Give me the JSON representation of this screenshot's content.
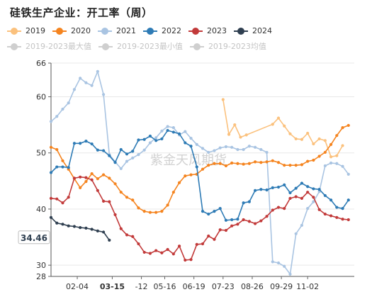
{
  "title": "硅铁生产企业：开工率（周）",
  "colors": {
    "y2019": "#fbc17d",
    "y2020": "#f5841f",
    "y2021": "#a9c4e2",
    "y2022": "#2e7bb5",
    "y2023": "#c23a3a",
    "y2024": "#2f3f50",
    "max": "#cfcfcf",
    "min": "#cfcfcf",
    "avg": "#cfcfcf"
  },
  "legend": [
    {
      "key": "y2019",
      "label": "2019"
    },
    {
      "key": "y2020",
      "label": "2020"
    },
    {
      "key": "y2021",
      "label": "2021"
    },
    {
      "key": "y2022",
      "label": "2022"
    },
    {
      "key": "y2023",
      "label": "2023"
    },
    {
      "key": "y2024",
      "label": "2024"
    },
    {
      "key": "max",
      "label": "2019-2023最大值"
    },
    {
      "key": "min",
      "label": "2019-2023最小值"
    },
    {
      "key": "avg",
      "label": "2019-2023均值"
    }
  ],
  "watermark": "紫金天风期货",
  "current_value_label": "34.46",
  "current_date_label": "03-15",
  "chart_data": {
    "type": "line",
    "title": "硅铁生产企业：开工率（周）",
    "x_range_weeks": [
      0,
      52
    ],
    "x_ticks": [
      {
        "week": 4.5,
        "label": "02-04"
      },
      {
        "week": 10.5,
        "label": "03-15",
        "highlight": true
      },
      {
        "week": 15.5,
        "label": "-12"
      },
      {
        "week": 19.5,
        "label": "05-16"
      },
      {
        "week": 24.5,
        "label": "06-19"
      },
      {
        "week": 29.5,
        "label": "07-23"
      },
      {
        "week": 34.5,
        "label": "08-26"
      },
      {
        "week": 39.5,
        "label": "09-29"
      },
      {
        "week": 44,
        "label": "11-02"
      }
    ],
    "ylim": [
      28,
      66
    ],
    "y_ticks": [
      28,
      30,
      40,
      50,
      60,
      66
    ],
    "series": [
      {
        "key": "y2019",
        "name": "2019",
        "x": [
          29.5,
          30.5,
          31.5,
          32.5,
          33.5,
          38,
          39,
          40,
          41,
          42,
          43,
          44,
          45,
          46,
          47,
          48,
          49,
          50
        ],
        "y": [
          59.5,
          53.3,
          55,
          52.8,
          53.2,
          55.1,
          56.2,
          54.8,
          53.4,
          52.5,
          52.4,
          53.5,
          51.6,
          52.5,
          52.2,
          49.3,
          49.5,
          51.3
        ]
      },
      {
        "key": "y2020",
        "name": "2020",
        "x": [
          0,
          1,
          2,
          3,
          4,
          5,
          6,
          7,
          8,
          9,
          10,
          11,
          12,
          13,
          14,
          15,
          16,
          17,
          18,
          19,
          20,
          21,
          22,
          23,
          24,
          25,
          26,
          27,
          28,
          29,
          30,
          31,
          32,
          33,
          34,
          35,
          36,
          37,
          38,
          39,
          40,
          41,
          42,
          43,
          44,
          45,
          46,
          47,
          48,
          49,
          50,
          51
        ],
        "y": [
          51,
          50.6,
          48.6,
          47.1,
          45.4,
          43.8,
          44.9,
          46.3,
          45.4,
          46.1,
          45.5,
          44.5,
          43,
          42.1,
          41.6,
          40.2,
          39.6,
          39.4,
          39.4,
          39.6,
          40.7,
          43,
          44.7,
          45.9,
          46.1,
          46.2,
          47.1,
          47.8,
          48.1,
          48.1,
          47.7,
          48.2,
          48.1,
          48,
          48.1,
          48.4,
          48.3,
          48.4,
          48.6,
          48.3,
          47.8,
          47.8,
          47.8,
          47.9,
          48.5,
          48.7,
          49.4,
          50.1,
          51.5,
          53.1,
          54.5,
          54.9
        ]
      },
      {
        "key": "y2021",
        "name": "2021",
        "x": [
          0,
          1,
          2,
          3,
          4,
          5,
          6,
          7,
          8,
          9,
          10,
          11,
          12,
          13,
          14,
          15,
          16,
          17,
          18,
          19,
          20,
          21,
          22,
          23,
          24,
          25,
          26,
          27,
          28,
          29,
          30,
          31,
          32,
          33,
          34,
          35,
          36,
          37,
          38,
          39,
          40,
          41,
          42,
          43,
          44,
          45,
          46,
          47,
          48,
          49,
          50,
          51
        ],
        "y": [
          55.6,
          56.5,
          57.8,
          58.9,
          61.3,
          63.3,
          62.5,
          62,
          64.5,
          60.4,
          49.7,
          48.4,
          47.2,
          48.5,
          49.1,
          49.7,
          50.5,
          51.8,
          52.7,
          53.9,
          54.7,
          54.5,
          53.2,
          53.8,
          52.6,
          51.5,
          50.8,
          50.1,
          50.4,
          50.9,
          51.1,
          51,
          50.6,
          50.6,
          51.2,
          51,
          50.6,
          50.1,
          30.6,
          30.4,
          29.8,
          28.4,
          35.6,
          37.1,
          40.1,
          41.3,
          43.1,
          47.7,
          48.2,
          48.1,
          47.6,
          46.2
        ]
      },
      {
        "key": "y2022",
        "name": "2022",
        "x": [
          0,
          1,
          2,
          3,
          4,
          5,
          6,
          7,
          8,
          9,
          10,
          11,
          12,
          13,
          14,
          15,
          16,
          17,
          18,
          19,
          20,
          21,
          22,
          23,
          24,
          25,
          26,
          27,
          28,
          29,
          30,
          31,
          32,
          33,
          34,
          35,
          36,
          37,
          38,
          39,
          40,
          41,
          42,
          43,
          44,
          45,
          46,
          47,
          48,
          49,
          50,
          51
        ],
        "y": [
          46.5,
          47.5,
          47.5,
          47.4,
          51.7,
          51.7,
          52.1,
          51.6,
          50.5,
          50.4,
          49.5,
          48.3,
          50.6,
          49.8,
          50.3,
          52.3,
          52.4,
          53,
          52.2,
          52.5,
          54,
          53.7,
          53.4,
          51.8,
          51.2,
          47.5,
          39.6,
          39.1,
          39.6,
          40.1,
          38,
          38.1,
          38.2,
          41.1,
          41.3,
          43.3,
          43.5,
          43.4,
          43.8,
          43.9,
          44.3,
          42.9,
          43.7,
          44.6,
          44,
          43.6,
          43.5,
          42.4,
          41.6,
          40.3,
          40.1,
          41.6
        ]
      },
      {
        "key": "y2023",
        "name": "2023",
        "x": [
          0,
          1,
          2,
          3,
          4,
          5,
          6,
          7,
          8,
          9,
          10,
          11,
          12,
          13,
          14,
          15,
          16,
          17,
          18,
          19,
          20,
          21,
          22,
          23,
          24,
          25,
          26,
          27,
          28,
          29,
          30,
          31,
          32,
          33,
          34,
          35,
          36,
          37,
          38,
          39,
          40,
          41,
          42,
          43,
          44,
          45,
          46,
          47,
          48,
          49,
          50,
          51
        ],
        "y": [
          41.9,
          41.8,
          41.1,
          42.1,
          45.5,
          45.7,
          45.6,
          45.2,
          43.3,
          41.4,
          41.3,
          39,
          36.5,
          35.4,
          35.1,
          33.8,
          32.3,
          32.1,
          32.6,
          32.2,
          32.8,
          32,
          33.4,
          30.9,
          31,
          33.7,
          33.8,
          35.2,
          34.6,
          36.3,
          36.2,
          37,
          37.3,
          38.1,
          37.8,
          37.4,
          37.9,
          38.7,
          39.8,
          40.3,
          40.1,
          41.9,
          42.2,
          41.9,
          43,
          42.1,
          39.9,
          39.1,
          38.8,
          38.5,
          38.2,
          38.1
        ]
      },
      {
        "key": "y2024",
        "name": "2024",
        "x": [
          0,
          1,
          2,
          3,
          4,
          5,
          6,
          7,
          8,
          9,
          10
        ],
        "y": [
          38.5,
          37.5,
          37.3,
          37,
          36.9,
          36.7,
          36.6,
          36.4,
          36.1,
          35.9,
          34.46
        ]
      }
    ]
  }
}
